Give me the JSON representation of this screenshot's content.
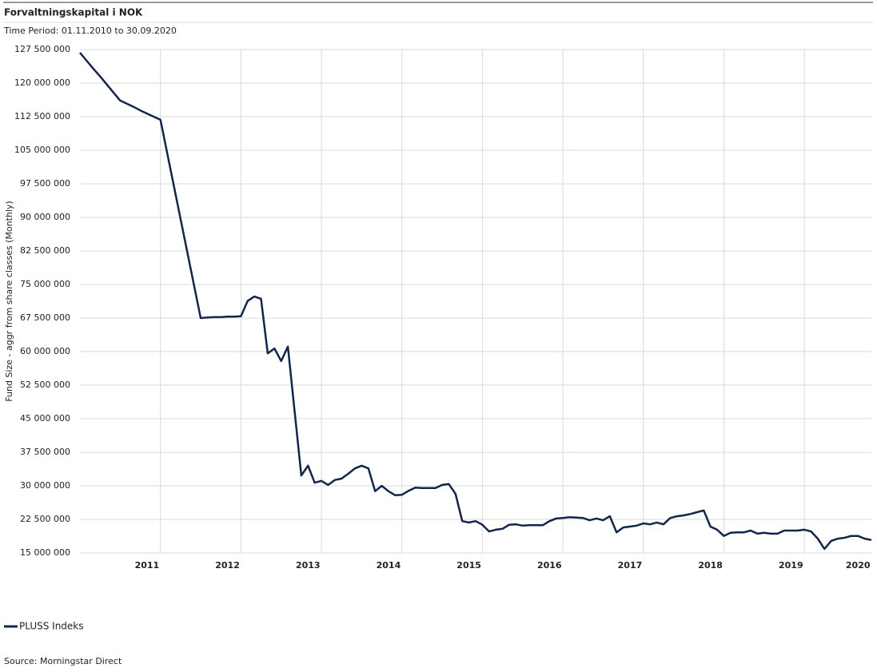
{
  "chart_data": {
    "type": "line",
    "title": "Forvaltningskapital i NOK",
    "subtitle": "Time Period: 01.11.2010 to 30.09.2020",
    "y_label": "Fund Size - aggr from share classes (Monthly)",
    "source": "Source: Morningstar Direct",
    "categories": [
      null,
      null,
      null,
      null,
      null,
      null,
      null,
      null,
      null,
      null,
      "2011",
      null,
      null,
      null,
      null,
      null,
      null,
      null,
      null,
      null,
      null,
      null,
      "2012",
      null,
      null,
      null,
      null,
      null,
      null,
      null,
      null,
      null,
      null,
      null,
      "2013",
      null,
      null,
      null,
      null,
      null,
      null,
      null,
      null,
      null,
      null,
      null,
      "2014",
      null,
      null,
      null,
      null,
      null,
      null,
      null,
      null,
      null,
      null,
      null,
      "2015",
      null,
      null,
      null,
      null,
      null,
      null,
      null,
      null,
      null,
      null,
      null,
      "2016",
      null,
      null,
      null,
      null,
      null,
      null,
      null,
      null,
      null,
      null,
      null,
      "2017",
      null,
      null,
      null,
      null,
      null,
      null,
      null,
      null,
      null,
      null,
      null,
      "2018",
      null,
      null,
      null,
      null,
      null,
      null,
      null,
      null,
      null,
      null,
      null,
      "2019",
      null,
      null,
      null,
      null,
      null,
      null,
      null,
      null,
      null,
      "2020",
      null,
      null
    ],
    "series": [
      {
        "name": "PLUSS Indeks",
        "color": "#14254a",
        "values": [
          126800000,
          125000000,
          123200000,
          121500000,
          119700000,
          117900000,
          116100000,
          115400000,
          114700000,
          113900000,
          113200000,
          112500000,
          111800000,
          104400000,
          97000000,
          89700000,
          82300000,
          74900000,
          67500000,
          67600000,
          67700000,
          67700000,
          67800000,
          67800000,
          67900000,
          71300000,
          72300000,
          71800000,
          59600000,
          60700000,
          57900000,
          61100000,
          46700000,
          32300000,
          34500000,
          30700000,
          31100000,
          30200000,
          31300000,
          31600000,
          32700000,
          33900000,
          34500000,
          33900000,
          28800000,
          30000000,
          28800000,
          27900000,
          28000000,
          28900000,
          29600000,
          29500000,
          29500000,
          29500000,
          30200000,
          30400000,
          28200000,
          22100000,
          21800000,
          22100000,
          21300000,
          19800000,
          20200000,
          20400000,
          21300000,
          21400000,
          21100000,
          21200000,
          21200000,
          21200000,
          22100000,
          22700000,
          22800000,
          23000000,
          22900000,
          22800000,
          22300000,
          22700000,
          22300000,
          23200000,
          19600000,
          20700000,
          20900000,
          21100000,
          21600000,
          21400000,
          21800000,
          21400000,
          22800000,
          23200000,
          23400000,
          23700000,
          24100000,
          24500000,
          20900000,
          20200000,
          18800000,
          19500000,
          19600000,
          19600000,
          20000000,
          19300000,
          19500000,
          19300000,
          19300000,
          20000000,
          20000000,
          20000000,
          20200000,
          19800000,
          18200000,
          15900000,
          17700000,
          18200000,
          18400000,
          18800000,
          18800000,
          18200000,
          17900000
        ]
      }
    ],
    "ylim": [
      15000000,
      127500000
    ],
    "yticks": [
      {
        "value": 15000000,
        "label": "15 000 000"
      },
      {
        "value": 22500000,
        "label": "22 500 000"
      },
      {
        "value": 30000000,
        "label": "30 000 000"
      },
      {
        "value": 37500000,
        "label": "37 500 000"
      },
      {
        "value": 45000000,
        "label": "45 000 000"
      },
      {
        "value": 52500000,
        "label": "52 500 000"
      },
      {
        "value": 60000000,
        "label": "60 000 000"
      },
      {
        "value": 67500000,
        "label": "67 500 000"
      },
      {
        "value": 75000000,
        "label": "75 000 000"
      },
      {
        "value": 82500000,
        "label": "82 500 000"
      },
      {
        "value": 90000000,
        "label": "90 000 000"
      },
      {
        "value": 97500000,
        "label": "97 500 000"
      },
      {
        "value": 105000000,
        "label": "105 000 000"
      },
      {
        "value": 112500000,
        "label": "112 500 000"
      },
      {
        "value": 120000000,
        "label": "120 000 000"
      },
      {
        "value": 127500000,
        "label": "127 500 000"
      }
    ],
    "grid": true
  }
}
